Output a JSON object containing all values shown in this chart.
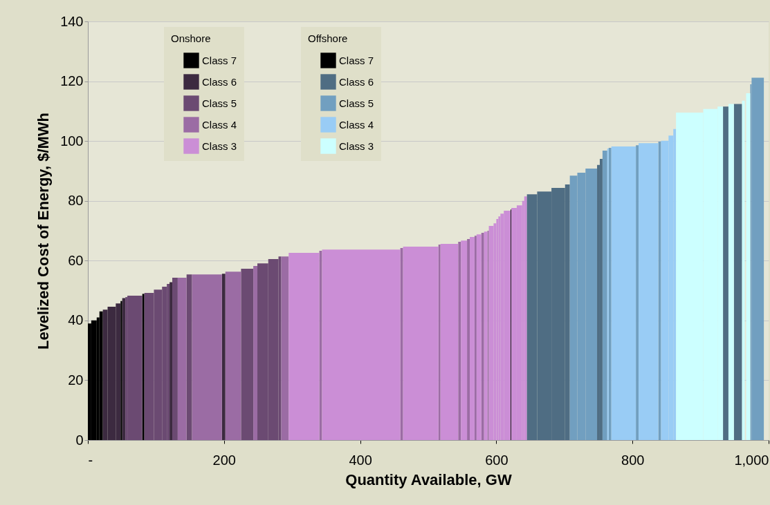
{
  "chart_data": {
    "type": "area",
    "xlabel": "Quantity Available, GW",
    "ylabel": "Levelized Cost of Energy, $/MWh",
    "legend_title": [
      "Onshore",
      "Offshore"
    ],
    "legend": "top left",
    "grid": "y",
    "xlim": [
      0,
      1000
    ],
    "xticks": [
      {
        "value": 0,
        "label": "-"
      },
      200,
      400,
      600,
      800,
      {
        "value": 1000,
        "label": "1,000"
      }
    ],
    "ylim": [
      0,
      140
    ],
    "yticks": [
      0,
      20,
      40,
      60,
      80,
      100,
      120,
      140
    ],
    "series": [
      {
        "name": "Class 7",
        "color": "#000000",
        "x": [
          0,
          5,
          null,
          5,
          13,
          null,
          13,
          17,
          null,
          17,
          22,
          null,
          48,
          50.5,
          null,
          80,
          83,
          null,
          621,
          622,
          null
        ],
        "values": [
          39,
          39,
          null,
          40,
          40,
          null,
          41,
          41,
          null,
          43,
          43,
          null,
          46.5,
          46.5,
          null,
          48.9,
          48.9,
          null,
          77.1,
          77.1,
          null
        ]
      },
      {
        "name": "Class 6",
        "color": "#3c2a40",
        "x": [
          22,
          29,
          null,
          29,
          41,
          null,
          41,
          48,
          null,
          50.5,
          55,
          null,
          120,
          124,
          null,
          197,
          202,
          null
        ],
        "values": [
          43.6,
          43.6,
          null,
          44.6,
          44.6,
          null,
          45.7,
          45.7,
          null,
          47.5,
          47.5,
          null,
          52.8,
          52.8,
          null,
          55.6,
          55.6,
          null
        ]
      },
      {
        "name": "Class 5",
        "color": "#6b4a72",
        "x": [
          55,
          58,
          null,
          58,
          80,
          null,
          83,
          97,
          null,
          97,
          109,
          null,
          109,
          116,
          null,
          116,
          120,
          null,
          124,
          132,
          null,
          145,
          153,
          null,
          225,
          243,
          null,
          249,
          265,
          null,
          265,
          280,
          null,
          280,
          284,
          null
        ],
        "values": [
          47.8,
          47.8,
          null,
          48.3,
          48.3,
          null,
          49.2,
          49.2,
          null,
          50.3,
          50.3,
          null,
          51.3,
          51.3,
          null,
          52.2,
          52.2,
          null,
          54.3,
          54.3,
          null,
          55.4,
          55.4,
          null,
          57.3,
          57.3,
          null,
          59.1,
          59.1,
          null,
          60.5,
          60.5,
          null,
          61.4,
          61.4,
          null
        ]
      },
      {
        "name": "Class 4",
        "color": "#9b6ca4",
        "x": [
          132,
          145,
          null,
          153,
          197,
          null,
          202,
          225,
          null,
          243,
          249,
          null,
          284,
          295,
          null,
          340,
          344,
          null,
          459,
          463,
          null,
          515,
          518,
          null,
          544,
          548,
          null,
          557,
          561,
          null,
          568,
          571,
          null,
          578,
          582,
          null,
          587,
          589,
          null
        ],
        "values": [
          54.3,
          54.3,
          null,
          55.4,
          55.4,
          null,
          56.3,
          56.3,
          null,
          58.2,
          58.2,
          null,
          61.4,
          61.4,
          null,
          63.3,
          63.3,
          null,
          64.2,
          64.2,
          null,
          65.4,
          65.4,
          null,
          66.3,
          66.3,
          null,
          67.2,
          67.2,
          null,
          68.3,
          68.3,
          null,
          69.3,
          69.3,
          null,
          70,
          70,
          null
        ]
      },
      {
        "name": "Class 3",
        "color": "#cb8ed6",
        "x": [
          295,
          340,
          null,
          344,
          459,
          null,
          463,
          515,
          null,
          518,
          544,
          null,
          548,
          557,
          null,
          561,
          568,
          null,
          571,
          578,
          null,
          582,
          587,
          null,
          589,
          596,
          null,
          596,
          600,
          null,
          600,
          603,
          null,
          603,
          606,
          null,
          606,
          611,
          null,
          611,
          621,
          null,
          622,
          630,
          null,
          630,
          638,
          null,
          638,
          641,
          null,
          641,
          645,
          null
        ],
        "values": [
          62.6,
          62.6,
          null,
          63.7,
          63.7,
          null,
          64.7,
          64.7,
          null,
          65.6,
          65.6,
          null,
          66.7,
          66.7,
          null,
          67.9,
          67.9,
          null,
          68.8,
          68.8,
          null,
          69.7,
          69.7,
          null,
          71.6,
          71.6,
          null,
          72.5,
          72.5,
          null,
          73.9,
          73.9,
          null,
          74.8,
          74.8,
          null,
          75.7,
          75.7,
          null,
          76.7,
          76.7,
          null,
          77.6,
          77.6,
          null,
          78.5,
          78.5,
          null,
          80,
          80,
          null,
          81.5,
          81.5,
          null
        ]
      },
      {
        "name": "Class 7",
        "color": "#000000"
      },
      {
        "name": "Class 6",
        "color": "#4f6d83",
        "x": [
          645,
          660,
          null,
          660,
          681,
          null,
          681,
          701,
          null,
          701,
          708,
          null,
          748,
          752,
          null,
          752,
          756,
          null,
          933,
          941,
          null,
          949,
          961,
          null
        ],
        "values": [
          82.2,
          82.2,
          null,
          83.1,
          83.1,
          null,
          84.3,
          84.3,
          null,
          85.5,
          85.5,
          null,
          92,
          92,
          null,
          94,
          94,
          null,
          111.5,
          111.5,
          null,
          112.4,
          112.4,
          null
        ]
      },
      {
        "name": "Class 5",
        "color": "#719fc0",
        "x": [
          708,
          719,
          null,
          719,
          731,
          null,
          731,
          748,
          null,
          756,
          763,
          null,
          765,
          769,
          null,
          805,
          809,
          null,
          838,
          842,
          null,
          973,
          975,
          null,
          975,
          993,
          null
        ],
        "values": [
          88.4,
          88.4,
          null,
          89.4,
          89.4,
          null,
          90.8,
          90.8,
          null,
          96.8,
          96.8,
          null,
          97.7,
          97.7,
          null,
          98.6,
          98.6,
          null,
          99.8,
          99.8,
          null,
          119,
          119,
          null,
          121.2,
          121.2,
          null
        ]
      },
      {
        "name": "Class 4",
        "color": "#99ccf5",
        "x": [
          763,
          765,
          null,
          769,
          805,
          null,
          809,
          838,
          null,
          842,
          853,
          null,
          853,
          860,
          null,
          860,
          864,
          null
        ],
        "values": [
          97.5,
          97.5,
          null,
          98.2,
          98.2,
          null,
          99.3,
          99.3,
          null,
          100.1,
          100.1,
          null,
          101.8,
          101.8,
          null,
          104,
          104,
          null
        ]
      },
      {
        "name": "Class 3",
        "color": "#ccffff",
        "x": [
          864,
          904,
          null,
          904,
          925,
          null,
          925,
          933,
          null,
          941,
          949,
          null,
          961,
          965,
          null,
          967,
          973,
          null
        ],
        "values": [
          109.5,
          109.5,
          null,
          110.7,
          110.7,
          null,
          111.5,
          111.5,
          null,
          112.4,
          112.4,
          null,
          113.5,
          113.5,
          null,
          116,
          116,
          null
        ]
      }
    ]
  }
}
